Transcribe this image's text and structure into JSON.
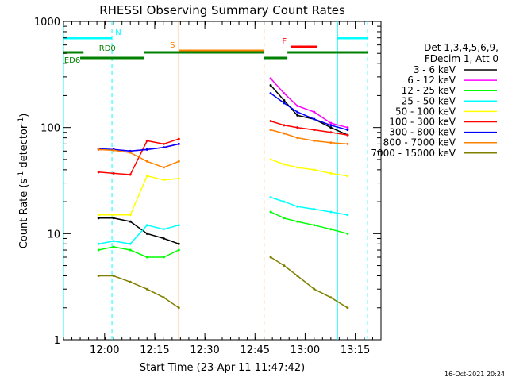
{
  "chart_data": {
    "type": "line",
    "title": "RHESSI Observing Summary Count Rates",
    "xlabel": "Start Time (23-Apr-11 11:47:42)",
    "ylabel_main": "Count Rate (s",
    "ylabel_sup1": "-1",
    "ylabel_mid": " detector",
    "ylabel_sup2": "-1",
    "ylabel_end": ")",
    "yscale": "log",
    "ylim": [
      1,
      1000
    ],
    "xlim_minutes": [
      0,
      95
    ],
    "xticks": [
      {
        "label": "12:00",
        "value": 12.3
      },
      {
        "label": "12:15",
        "value": 27.3
      },
      {
        "label": "12:30",
        "value": 42.3
      },
      {
        "label": "12:45",
        "value": 57.3
      },
      {
        "label": "13:00",
        "value": 72.3
      },
      {
        "label": "13:15",
        "value": 87.3
      }
    ],
    "yticks": [
      {
        "label": "1",
        "value": 1
      },
      {
        "label": "10",
        "value": 10
      },
      {
        "label": "100",
        "value": 100
      },
      {
        "label": "1000",
        "value": 1000
      }
    ],
    "legend_header": [
      "Det 1,3,4,5,6,9,",
      "FDecim 1, Att 0"
    ],
    "series": [
      {
        "name": "3 - 6 keV",
        "color": "#000000",
        "values": [
          [
            10.5,
            14
          ],
          [
            15,
            14
          ],
          [
            20,
            13
          ],
          [
            25,
            10
          ],
          [
            30,
            9
          ],
          [
            34.5,
            8
          ],
          [
            62,
            250
          ],
          [
            66,
            180
          ],
          [
            70,
            130
          ],
          [
            75,
            120
          ],
          [
            80,
            100
          ],
          [
            85,
            85
          ]
        ]
      },
      {
        "name": "6 - 12 keV",
        "color": "#ff00ff",
        "values": [
          [
            10.5,
            62
          ],
          [
            15,
            62
          ],
          [
            20,
            60
          ],
          [
            25,
            62
          ],
          [
            30,
            65
          ],
          [
            34.5,
            70
          ],
          [
            62,
            290
          ],
          [
            66,
            210
          ],
          [
            70,
            160
          ],
          [
            75,
            140
          ],
          [
            80,
            110
          ],
          [
            85,
            100
          ]
        ]
      },
      {
        "name": "12 - 25 keV",
        "color": "#00ff00",
        "values": [
          [
            10.5,
            7
          ],
          [
            15,
            7.5
          ],
          [
            20,
            7
          ],
          [
            25,
            6
          ],
          [
            30,
            6
          ],
          [
            34.5,
            7
          ],
          [
            62,
            16
          ],
          [
            66,
            14
          ],
          [
            70,
            13
          ],
          [
            75,
            12
          ],
          [
            80,
            11
          ],
          [
            85,
            10
          ]
        ]
      },
      {
        "name": "25 - 50 keV",
        "color": "#00ffff",
        "values": [
          [
            10.5,
            8
          ],
          [
            15,
            8.5
          ],
          [
            20,
            8
          ],
          [
            25,
            12
          ],
          [
            30,
            11
          ],
          [
            34.5,
            12
          ],
          [
            62,
            22
          ],
          [
            66,
            20
          ],
          [
            70,
            18
          ],
          [
            75,
            17
          ],
          [
            80,
            16
          ],
          [
            85,
            15
          ]
        ]
      },
      {
        "name": "50 - 100 keV",
        "color": "#ffff00",
        "values": [
          [
            10.5,
            15
          ],
          [
            15,
            15
          ],
          [
            20,
            15
          ],
          [
            25,
            35
          ],
          [
            30,
            32
          ],
          [
            34.5,
            33
          ],
          [
            62,
            50
          ],
          [
            66,
            45
          ],
          [
            70,
            42
          ],
          [
            75,
            40
          ],
          [
            80,
            37
          ],
          [
            85,
            35
          ]
        ]
      },
      {
        "name": "100 - 300 keV",
        "color": "#ff0000",
        "values": [
          [
            10.5,
            38
          ],
          [
            15,
            37
          ],
          [
            20,
            36
          ],
          [
            25,
            75
          ],
          [
            30,
            70
          ],
          [
            34.5,
            78
          ],
          [
            62,
            115
          ],
          [
            66,
            105
          ],
          [
            70,
            100
          ],
          [
            75,
            95
          ],
          [
            80,
            90
          ],
          [
            85,
            85
          ]
        ]
      },
      {
        "name": "300 - 800 keV",
        "color": "#0000ff",
        "values": [
          [
            10.5,
            63
          ],
          [
            15,
            62
          ],
          [
            20,
            60
          ],
          [
            25,
            62
          ],
          [
            30,
            65
          ],
          [
            34.5,
            70
          ],
          [
            62,
            210
          ],
          [
            66,
            170
          ],
          [
            70,
            140
          ],
          [
            75,
            120
          ],
          [
            80,
            105
          ],
          [
            85,
            95
          ]
        ]
      },
      {
        "name": "800 - 7000 keV",
        "color": "#ff8000",
        "values": [
          [
            10.5,
            62
          ],
          [
            15,
            61
          ],
          [
            20,
            58
          ],
          [
            25,
            48
          ],
          [
            30,
            42
          ],
          [
            34.5,
            48
          ],
          [
            62,
            95
          ],
          [
            66,
            88
          ],
          [
            70,
            80
          ],
          [
            75,
            75
          ],
          [
            80,
            72
          ],
          [
            85,
            70
          ]
        ]
      },
      {
        "name": "7000 - 15000 keV",
        "color": "#808000",
        "values": [
          [
            10.5,
            4
          ],
          [
            15,
            4
          ],
          [
            20,
            3.5
          ],
          [
            25,
            3
          ],
          [
            30,
            2.5
          ],
          [
            34.5,
            2
          ],
          [
            62,
            6
          ],
          [
            66,
            5
          ],
          [
            70,
            4
          ],
          [
            75,
            3
          ],
          [
            80,
            2.5
          ],
          [
            85,
            2
          ]
        ]
      }
    ],
    "flag_bars": [
      {
        "label": "N",
        "color": "#00ffff",
        "segments": [
          [
            0,
            14.5
          ],
          [
            82,
            91
          ]
        ]
      },
      {
        "label": "S",
        "color": "#ff8000",
        "segments": [
          [
            34.5,
            60
          ]
        ]
      },
      {
        "label": "F",
        "color": "#ff0000",
        "segments": [
          [
            68,
            76
          ]
        ]
      },
      {
        "label": "RD0",
        "color": "#008000",
        "segments": [
          [
            0,
            6
          ],
          [
            24,
            60
          ],
          [
            67,
            91
          ]
        ]
      },
      {
        "label": "ED6",
        "color": "#008000",
        "segments": [
          [
            5,
            24
          ],
          [
            60,
            67
          ]
        ]
      }
    ],
    "vertical_markers": [
      {
        "color": "#00ffff",
        "style": "solid",
        "x": 0
      },
      {
        "color": "#00ffff",
        "style": "dashed",
        "x": 14.5
      },
      {
        "color": "#ff8000",
        "style": "solid",
        "x": 34.5
      },
      {
        "color": "#ff8000",
        "style": "dashed",
        "x": 60
      },
      {
        "color": "#00ffff",
        "style": "solid",
        "x": 82
      },
      {
        "color": "#00ffff",
        "style": "dashed",
        "x": 91
      }
    ]
  },
  "footer_date": "16-Oct-2021 20:24"
}
